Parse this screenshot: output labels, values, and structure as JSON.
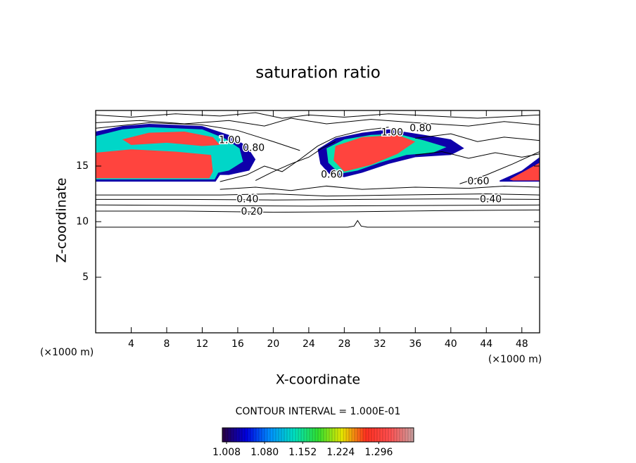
{
  "chart_data": {
    "type": "contour",
    "title": "saturation ratio",
    "x_label": "X-coordinate",
    "y_label": "Z-coordinate",
    "x_unit": "(×1000 m)",
    "y_unit": "(×1000 m)",
    "xlim": [
      0,
      50
    ],
    "ylim": [
      0,
      20
    ],
    "xticks": [
      4,
      8,
      12,
      16,
      20,
      24,
      28,
      32,
      36,
      40,
      44,
      48
    ],
    "yticks": [
      5,
      10,
      15
    ],
    "annotation": "CONTOUR INTERVAL = 1.000E-01",
    "contours": [
      {
        "x": [
          0,
          28.4,
          29.1,
          29.5,
          29.9,
          30.6,
          50
        ],
        "z": [
          9.5,
          9.5,
          9.6,
          10.1,
          9.6,
          9.5,
          9.5
        ]
      },
      {
        "x": [
          0,
          10,
          20,
          30,
          40,
          50
        ],
        "z": [
          10.95,
          10.95,
          10.85,
          10.9,
          11,
          11.05
        ]
      },
      {
        "x": [
          0,
          12,
          24,
          36,
          50
        ],
        "z": [
          11.5,
          11.45,
          11.4,
          11.45,
          11.5
        ]
      },
      {
        "x": [
          0,
          10,
          20,
          30,
          40,
          50
        ],
        "z": [
          12,
          12,
          11.95,
          12,
          12.05,
          12
        ]
      },
      {
        "x": [
          0,
          14,
          20,
          26,
          34,
          44,
          50
        ],
        "z": [
          12.4,
          12.4,
          12.5,
          12.3,
          12.4,
          12.5,
          12.4
        ]
      },
      {
        "x": [
          14,
          18,
          22,
          26,
          30,
          36,
          42,
          46,
          50
        ],
        "z": [
          12.9,
          13.1,
          12.8,
          13.2,
          12.9,
          13.1,
          13,
          13.2,
          13.1
        ]
      },
      {
        "x": [
          14,
          17,
          19,
          21,
          23,
          25,
          27,
          30,
          33
        ],
        "z": [
          13.6,
          14.2,
          15,
          14.5,
          15.6,
          16.8,
          17.6,
          18.2,
          18.5
        ]
      },
      {
        "x": [
          18,
          20,
          22,
          24,
          25.5,
          27
        ],
        "z": [
          13.7,
          14.5,
          15.2,
          15.8,
          16.6,
          17.2
        ]
      },
      {
        "x": [
          41,
          44,
          47,
          50
        ],
        "z": [
          13.4,
          14.2,
          15.2,
          16.3
        ]
      },
      {
        "x": [
          0,
          5,
          10,
          15,
          19,
          22,
          26,
          31,
          36,
          42,
          46,
          50
        ],
        "z": [
          18.9,
          19.1,
          18.8,
          19.1,
          18.6,
          19.3,
          18.8,
          19.2,
          18.9,
          18.6,
          19,
          18.7
        ]
      },
      {
        "x": [
          0,
          4,
          9,
          14,
          18,
          21,
          24,
          28,
          33,
          38,
          43,
          50
        ],
        "z": [
          19.6,
          19.4,
          19.7,
          19.5,
          19.8,
          19.3,
          19.6,
          19.4,
          19.7,
          19.5,
          19.3,
          19.6
        ]
      },
      {
        "x": [
          0,
          6,
          12,
          16,
          20,
          23
        ],
        "z": [
          18.4,
          18.9,
          18.7,
          18.2,
          17.2,
          16.4
        ]
      },
      {
        "x": [
          36,
          40,
          43,
          46,
          50
        ],
        "z": [
          17.5,
          17.9,
          17.2,
          17.6,
          17.3
        ]
      },
      {
        "x": [
          36,
          39,
          42,
          45,
          48,
          50
        ],
        "z": [
          16,
          16.3,
          15.7,
          16.2,
          15.8,
          16.1
        ]
      }
    ],
    "patches": [
      {
        "value": 1.03,
        "x": [
          0,
          3,
          6,
          12,
          15,
          17,
          18,
          17.3,
          15,
          14,
          13.5,
          0
        ],
        "z": [
          18.1,
          18.6,
          18.8,
          18.6,
          17.8,
          16.8,
          15.6,
          14.6,
          14.2,
          14.2,
          13.6,
          13.6
        ]
      },
      {
        "value": 1.13,
        "x": [
          0,
          3,
          6,
          12,
          14.5,
          16.2,
          16.6,
          15,
          13.8,
          13.4,
          0
        ],
        "z": [
          17.7,
          18.3,
          18.5,
          18.3,
          17.5,
          16.6,
          15.4,
          14.6,
          14.4,
          13.8,
          13.8
        ]
      },
      {
        "value": 1.3,
        "x": [
          0,
          4,
          9,
          13,
          13.2,
          12.8,
          0
        ],
        "z": [
          16.2,
          16.5,
          16.3,
          16,
          14.5,
          13.9,
          13.9
        ]
      },
      {
        "value": 1.3,
        "x": [
          3,
          6,
          10,
          13.2,
          14,
          12,
          8,
          4
        ],
        "z": [
          17.4,
          18,
          18.1,
          17.6,
          16.9,
          16.8,
          17.1,
          16.9
        ]
      },
      {
        "value": 1.03,
        "x": [
          25,
          27,
          30,
          33,
          37,
          40,
          41.5,
          40,
          36,
          33,
          30,
          28,
          26.3,
          25.3
        ],
        "z": [
          16.5,
          17.5,
          18,
          18.3,
          17.8,
          17.4,
          16.6,
          16,
          15.8,
          15.2,
          14.4,
          14,
          14.3,
          15.2
        ]
      },
      {
        "value": 1.14,
        "x": [
          26,
          28,
          31,
          34,
          37,
          39.5,
          38,
          35,
          32,
          29.5,
          27.5,
          26.2
        ],
        "z": [
          16.6,
          17.4,
          17.8,
          17.9,
          17.3,
          16.7,
          16.2,
          16,
          15.3,
          14.6,
          14.3,
          15.3
        ]
      },
      {
        "value": 1.3,
        "x": [
          27,
          30,
          34,
          36,
          34,
          31,
          28,
          26.8
        ],
        "z": [
          16.8,
          17.6,
          17.8,
          17.2,
          16.1,
          15.1,
          14.5,
          15.5
        ]
      },
      {
        "value": 1.03,
        "x": [
          45.5,
          48,
          50,
          50,
          45.5
        ],
        "z": [
          13.7,
          14.6,
          15.8,
          13.6,
          13.6
        ]
      },
      {
        "value": 1.3,
        "x": [
          46.6,
          48.2,
          50,
          50,
          47
        ],
        "z": [
          13.8,
          14.5,
          15.3,
          13.7,
          13.7
        ]
      }
    ],
    "contour_labels": [
      {
        "x": 17.1,
        "z": 12.0,
        "value": 0.4,
        "label": "0.40"
      },
      {
        "x": 17.6,
        "z": 10.9,
        "value": 0.2,
        "label": "0.20"
      },
      {
        "x": 44.5,
        "z": 12.0,
        "value": 0.4,
        "label": "0.40"
      },
      {
        "x": 15.1,
        "z": 17.3,
        "value": 1.0,
        "label": "1.00"
      },
      {
        "x": 17.8,
        "z": 16.6,
        "value": 0.8,
        "label": "0.80"
      },
      {
        "x": 33.4,
        "z": 18.0,
        "value": 1.0,
        "label": "1.00"
      },
      {
        "x": 36.6,
        "z": 18.4,
        "value": 0.8,
        "label": "0.80"
      },
      {
        "x": 43.1,
        "z": 13.6,
        "value": 0.6,
        "label": "0.60"
      },
      {
        "x": 26.6,
        "z": 14.2,
        "value": 0.6,
        "label": "0.60"
      }
    ],
    "colorbar": {
      "colormap": [
        "#2a0040",
        "#0000e0",
        "#0090ff",
        "#00e0c0",
        "#30e030",
        "#e8e800",
        "#ff3020",
        "#ff5050",
        "#c8a0a0"
      ],
      "lim": [
        1.0,
        1.362
      ],
      "ticks": [
        1.008,
        {
          "value": 1.08,
          "label": "1.080"
        },
        1.152,
        1.224,
        1.296
      ]
    }
  }
}
